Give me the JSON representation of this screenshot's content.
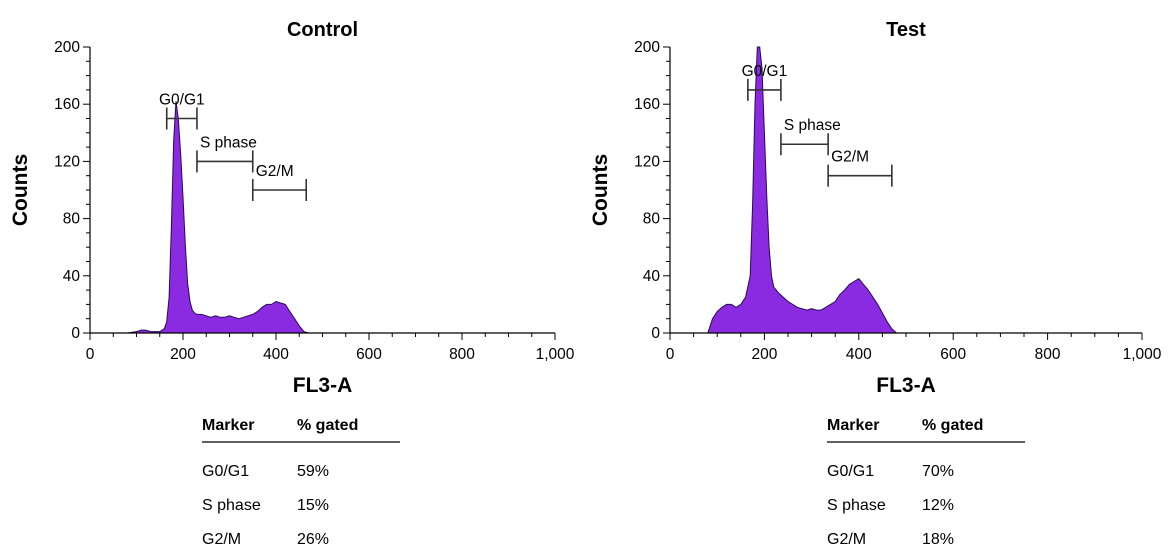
{
  "chart_data": [
    {
      "type": "area",
      "title": "Control",
      "xlabel": "FL3-A",
      "ylabel": "Counts",
      "xlim": [
        0,
        1000
      ],
      "ylim": [
        0,
        200
      ],
      "x_ticks": [
        0,
        200,
        400,
        600,
        800,
        1000
      ],
      "x_tick_labels": [
        "0",
        "200",
        "400",
        "600",
        "800",
        "1,000"
      ],
      "y_ticks": [
        0,
        40,
        80,
        120,
        160,
        200
      ],
      "y_tick_labels": [
        "0",
        "40",
        "80",
        "120",
        "160",
        "200"
      ],
      "fill_color": "#8a2be2",
      "grid": false,
      "series": [
        {
          "x": [
            0,
            80,
            100,
            110,
            120,
            130,
            140,
            150,
            160,
            165,
            170,
            175,
            180,
            185,
            190,
            195,
            200,
            205,
            210,
            215,
            220,
            225,
            230,
            240,
            250,
            260,
            270,
            280,
            290,
            300,
            310,
            320,
            330,
            340,
            350,
            360,
            370,
            380,
            390,
            400,
            410,
            420,
            430,
            440,
            450,
            460,
            470,
            1000
          ],
          "y": [
            0,
            0,
            1,
            2,
            2,
            1,
            1,
            1,
            3,
            8,
            25,
            75,
            135,
            162,
            150,
            125,
            95,
            62,
            35,
            22,
            16,
            14,
            13,
            13,
            12,
            11,
            12,
            11,
            11,
            12,
            11,
            10,
            11,
            12,
            13,
            15,
            18,
            20,
            20,
            22,
            21,
            20,
            15,
            10,
            5,
            1,
            0,
            0
          ]
        }
      ],
      "gates": [
        {
          "label": "G0/G1",
          "x": [
            165,
            230
          ],
          "y": 150
        },
        {
          "label": "S phase",
          "x": [
            230,
            350
          ],
          "y": 120
        },
        {
          "label": "G2/M",
          "x": [
            350,
            465
          ],
          "y": 100
        }
      ],
      "table": {
        "headers": [
          "Marker",
          "% gated"
        ],
        "rows": [
          [
            "G0/G1",
            "59%"
          ],
          [
            "S phase",
            "15%"
          ],
          [
            "G2/M",
            "26%"
          ]
        ]
      }
    },
    {
      "type": "area",
      "title": "Test",
      "xlabel": "FL3-A",
      "ylabel": "Counts",
      "xlim": [
        0,
        1000
      ],
      "ylim": [
        0,
        200
      ],
      "x_ticks": [
        0,
        200,
        400,
        600,
        800,
        1000
      ],
      "x_tick_labels": [
        "0",
        "200",
        "400",
        "600",
        "800",
        "1,000"
      ],
      "y_ticks": [
        0,
        40,
        80,
        120,
        160,
        200
      ],
      "y_tick_labels": [
        "0",
        "40",
        "80",
        "120",
        "160",
        "200"
      ],
      "fill_color": "#8a2be2",
      "grid": false,
      "series": [
        {
          "x": [
            0,
            80,
            90,
            100,
            110,
            120,
            130,
            140,
            150,
            160,
            170,
            175,
            180,
            185,
            190,
            195,
            200,
            205,
            210,
            215,
            220,
            230,
            240,
            250,
            260,
            270,
            280,
            290,
            300,
            310,
            320,
            330,
            340,
            350,
            360,
            370,
            380,
            390,
            400,
            410,
            420,
            430,
            440,
            450,
            460,
            470,
            480,
            1000
          ],
          "y": [
            0,
            0,
            10,
            15,
            18,
            20,
            20,
            18,
            20,
            25,
            40,
            90,
            160,
            200,
            200,
            185,
            140,
            95,
            60,
            40,
            32,
            28,
            25,
            22,
            20,
            18,
            17,
            16,
            17,
            16,
            16,
            18,
            20,
            22,
            27,
            30,
            34,
            36,
            38,
            34,
            30,
            25,
            20,
            14,
            8,
            3,
            0,
            0
          ]
        }
      ],
      "gates": [
        {
          "label": "G0/G1",
          "x": [
            165,
            235
          ],
          "y": 170
        },
        {
          "label": "S phase",
          "x": [
            235,
            335
          ],
          "y": 132
        },
        {
          "label": "G2/M",
          "x": [
            335,
            470
          ],
          "y": 110
        }
      ],
      "table": {
        "headers": [
          "Marker",
          "% gated"
        ],
        "rows": [
          [
            "G0/G1",
            "70%"
          ],
          [
            "S phase",
            "12%"
          ],
          [
            "G2/M",
            "18%"
          ]
        ]
      }
    }
  ]
}
